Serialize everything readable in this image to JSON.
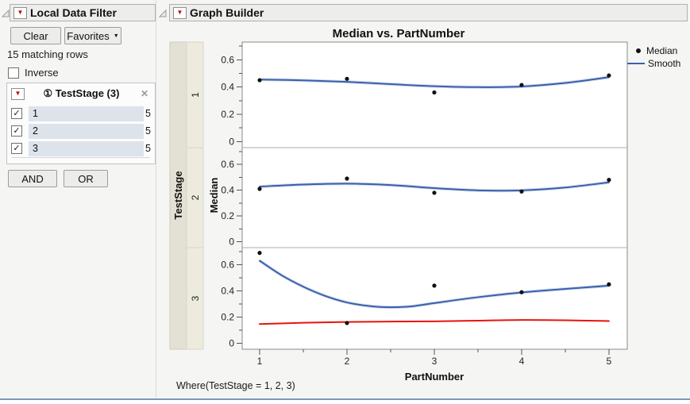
{
  "filter_panel": {
    "title": "Local Data Filter",
    "buttons": {
      "clear": "Clear",
      "favorites": "Favorites",
      "and": "AND",
      "or": "OR"
    },
    "matching_rows_text": "15 matching rows",
    "inverse_label": "Inverse",
    "filter": {
      "type_icon": "①",
      "column_label": "TestStage (3)",
      "close_icon": "✕",
      "values": [
        {
          "label": "1",
          "count": "5",
          "checked": true
        },
        {
          "label": "2",
          "count": "5",
          "checked": true
        },
        {
          "label": "3",
          "count": "5",
          "checked": true
        }
      ]
    }
  },
  "graph_panel": {
    "title": "Graph Builder",
    "where_text": "Where(TestStage = 1, 2, 3)"
  },
  "icons": {
    "red_triangle": "▼",
    "dropdown_arrow": "▼",
    "checkmark": "✓",
    "disclosure": "open"
  },
  "colors": {
    "smooth_line": "#3a60ae",
    "smooth_halo": "#a9bad9",
    "extra_line": "#e8140c",
    "point": "#111111",
    "strip_outer": "#e3e1d3",
    "strip_inner": "#edebde",
    "bottom_border": "#7f97bd"
  },
  "chart_data": {
    "type": "scatter",
    "title": "Median vs. PartNumber",
    "xlabel": "PartNumber",
    "ylabel": "Median",
    "panel_variable": "TestStage",
    "x_ticks": [
      1,
      2,
      3,
      4,
      5
    ],
    "x_minor_ticks": [
      1.5,
      2.5,
      3.5,
      4.5
    ],
    "y_ticks": [
      0,
      0.2,
      0.4,
      0.6
    ],
    "y_minor_ticks": [
      0.1,
      0.3,
      0.5,
      0.7
    ],
    "xlim": [
      0.8,
      5.21
    ],
    "ylim": [
      -0.045,
      0.73
    ],
    "grid": false,
    "legend_position": "top-right",
    "legend": [
      {
        "label": "Median",
        "marker": "point",
        "color": "#111111"
      },
      {
        "label": "Smooth",
        "marker": "line",
        "color": "#3a60ae"
      }
    ],
    "panels": [
      {
        "stage": "1",
        "points": [
          [
            1,
            0.45
          ],
          [
            2,
            0.46
          ],
          [
            3,
            0.36
          ],
          [
            4,
            0.415
          ],
          [
            5,
            0.485
          ]
        ],
        "smooth": [
          [
            1,
            0.455
          ],
          [
            1.5,
            0.449
          ],
          [
            2,
            0.438
          ],
          [
            2.5,
            0.421
          ],
          [
            3,
            0.406
          ],
          [
            3.5,
            0.399
          ],
          [
            4,
            0.404
          ],
          [
            4.5,
            0.43
          ],
          [
            5,
            0.472
          ]
        ]
      },
      {
        "stage": "2",
        "points": [
          [
            1,
            0.41
          ],
          [
            2,
            0.49
          ],
          [
            3,
            0.38
          ],
          [
            4,
            0.39
          ],
          [
            5,
            0.48
          ]
        ],
        "smooth": [
          [
            1,
            0.428
          ],
          [
            1.5,
            0.444
          ],
          [
            2,
            0.451
          ],
          [
            2.5,
            0.44
          ],
          [
            3,
            0.416
          ],
          [
            3.5,
            0.399
          ],
          [
            4,
            0.399
          ],
          [
            4.5,
            0.421
          ],
          [
            5,
            0.461
          ]
        ]
      },
      {
        "stage": "3",
        "points": [
          [
            1,
            0.69
          ],
          [
            2,
            0.155
          ],
          [
            3,
            0.44
          ],
          [
            4,
            0.39
          ],
          [
            5,
            0.45
          ]
        ],
        "smooth": [
          [
            1,
            0.63
          ],
          [
            1.25,
            0.52
          ],
          [
            1.5,
            0.432
          ],
          [
            1.75,
            0.362
          ],
          [
            2,
            0.312
          ],
          [
            2.25,
            0.285
          ],
          [
            2.5,
            0.275
          ],
          [
            2.75,
            0.283
          ],
          [
            3,
            0.307
          ],
          [
            3.5,
            0.352
          ],
          [
            4,
            0.388
          ],
          [
            4.5,
            0.415
          ],
          [
            5,
            0.44
          ]
        ],
        "extra_smooth": {
          "color": "#e8140c",
          "points": [
            [
              1,
              0.147
            ],
            [
              1.5,
              0.157
            ],
            [
              2,
              0.163
            ],
            [
              2.5,
              0.166
            ],
            [
              3,
              0.168
            ],
            [
              3.5,
              0.173
            ],
            [
              4,
              0.178
            ],
            [
              4.5,
              0.176
            ],
            [
              5,
              0.17
            ]
          ]
        }
      }
    ]
  }
}
